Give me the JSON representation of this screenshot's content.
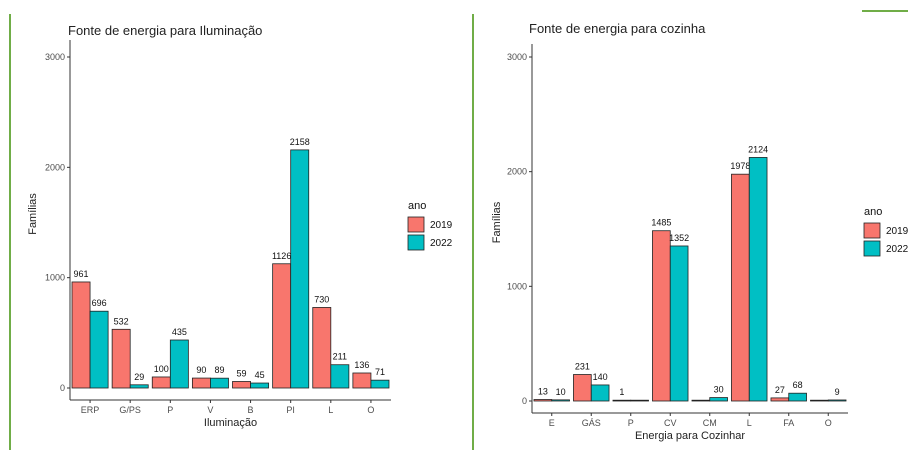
{
  "colors": {
    "c2019": "#f8766d",
    "c2022": "#00bfc4",
    "decor": "#70ad47"
  },
  "chart_data": [
    {
      "type": "bar",
      "title": "Fonte de energia para Iluminação",
      "xlabel": "Iluminação",
      "ylabel": "Famílias",
      "categories": [
        "ERP",
        "G/PS",
        "P",
        "V",
        "B",
        "PI",
        "L",
        "O"
      ],
      "series": [
        {
          "name": "2019",
          "values": [
            961,
            532,
            100,
            90,
            59,
            1126,
            730,
            136
          ]
        },
        {
          "name": "2022",
          "values": [
            696,
            29,
            435,
            89,
            45,
            2158,
            211,
            71
          ]
        }
      ],
      "ylim": [
        0,
        3000
      ],
      "yticks": [
        "0",
        "1000",
        "2000",
        "3000"
      ],
      "legend": {
        "title": "ano",
        "items": [
          "2019",
          "2022"
        ],
        "position": "right"
      },
      "grid": false
    },
    {
      "type": "bar",
      "title": "Fonte de energia para cozinha",
      "xlabel": "Energia para Cozinhar",
      "ylabel": "Famílias",
      "categories": [
        "E",
        "GÁS",
        "P",
        "CV",
        "CM",
        "L",
        "FA",
        "O"
      ],
      "series": [
        {
          "name": "2019",
          "values": [
            13,
            231,
            1,
            1485,
            0,
            1978,
            27,
            0
          ]
        },
        {
          "name": "2022",
          "values": [
            10,
            140,
            0,
            1352,
            30,
            2124,
            68,
            9
          ]
        }
      ],
      "ylim": [
        0,
        3000
      ],
      "yticks": [
        "0",
        "1000",
        "2000",
        "3000"
      ],
      "legend": {
        "title": "ano",
        "items": [
          "2019",
          "2022"
        ],
        "position": "right"
      },
      "grid": false
    }
  ]
}
